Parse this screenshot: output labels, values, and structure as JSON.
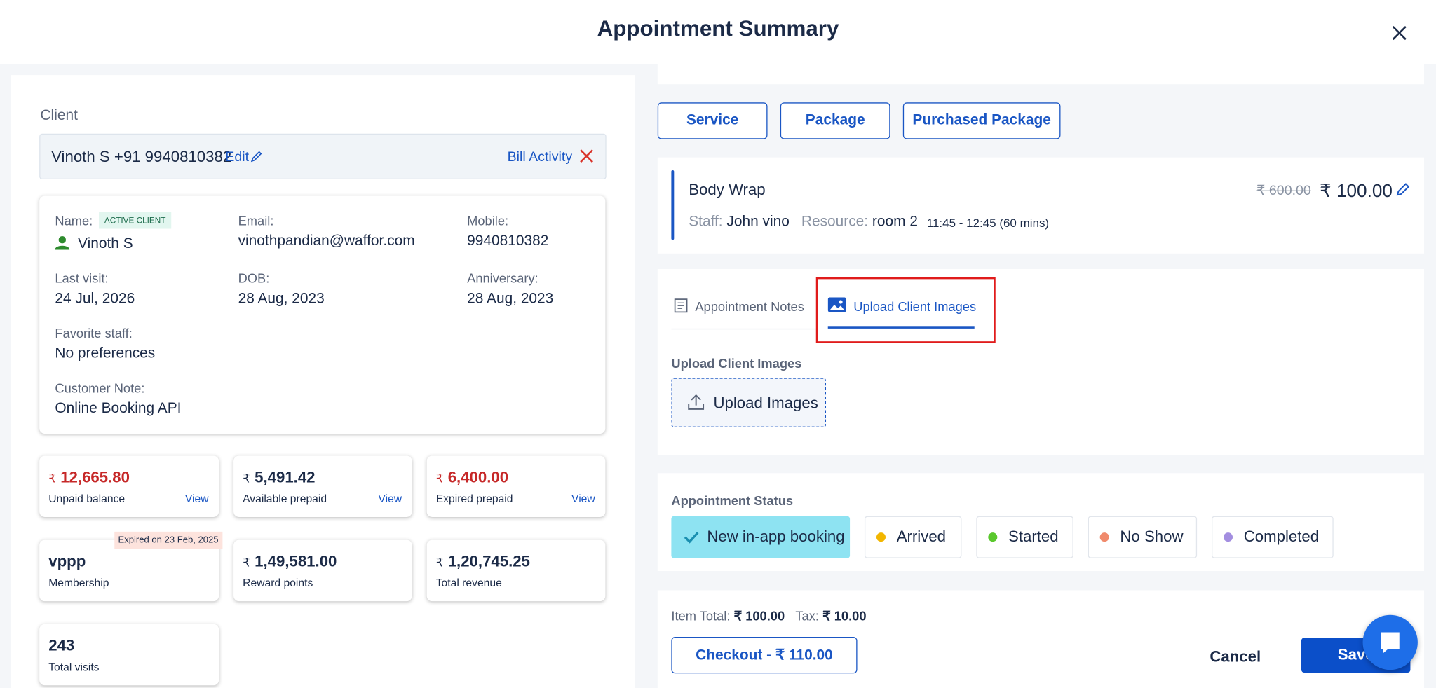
{
  "header": {
    "title": "Appointment Summary"
  },
  "client": {
    "label": "Client",
    "summary": "Vinoth S +91 9940810382",
    "edit": "Edit",
    "bill_activity": "Bill Activity",
    "details": [
      {
        "label": "Name:",
        "badge": "ACTIVE CLIENT",
        "value": "Vinoth S"
      },
      {
        "label": "Email:",
        "value": "vinothpandian@waffor.com"
      },
      {
        "label": "Mobile:",
        "value": "9940810382"
      },
      {
        "label": "Last visit:",
        "value": "24 Jul, 2026"
      },
      {
        "label": "DOB:",
        "value": "28 Aug, 2023"
      },
      {
        "label": "Anniversary:",
        "value": "28 Aug, 2023"
      },
      {
        "label": "Favorite staff:",
        "value": "No preferences"
      },
      {
        "label": "Customer Note:",
        "value": "Online Booking API"
      }
    ]
  },
  "stats": [
    {
      "currency": "₹",
      "amount": "12,665.80",
      "label": "Unpaid balance",
      "link": "View"
    },
    {
      "currency": "₹",
      "amount": "5,491.42",
      "label": "Available prepaid",
      "link": "View"
    },
    {
      "currency": "₹",
      "amount": "6,400.00",
      "label": "Expired prepaid",
      "link": "View"
    },
    {
      "amount": "vppp",
      "label": "Membership",
      "tag": "Expired on 23 Feb, 2025"
    },
    {
      "currency": "₹",
      "amount": "1,49,581.00",
      "label": "Reward points"
    },
    {
      "currency": "₹",
      "amount": "1,20,745.25",
      "label": "Total revenue"
    },
    {
      "amount": "243",
      "label": "Total visits"
    }
  ],
  "item_tabs": [
    "Service",
    "Package",
    "Purchased Package"
  ],
  "service": {
    "name": "Body Wrap",
    "old_price": "₹ 600.00",
    "price": "₹ 100.00",
    "staff_label": "Staff:",
    "staff": "John vino",
    "resource_label": "Resource:",
    "resource": "room 2",
    "time": "11:45 - 12:45 (60 mins)"
  },
  "notes": {
    "tabs": [
      "Appointment Notes",
      "Upload Client Images"
    ],
    "upload_label": "Upload Client Images",
    "upload_button": "Upload Images"
  },
  "status": {
    "label": "Appointment Status",
    "options": [
      "New in-app booking",
      "Arrived",
      "Started",
      "No Show",
      "Completed"
    ]
  },
  "footer": {
    "item_total_label": "Item Total:",
    "item_total": "₹ 100.00",
    "tax_label": "Tax:",
    "tax": "₹ 10.00",
    "checkout": "Checkout - ₹ 110.00",
    "cancel": "Cancel",
    "save": "Save"
  }
}
